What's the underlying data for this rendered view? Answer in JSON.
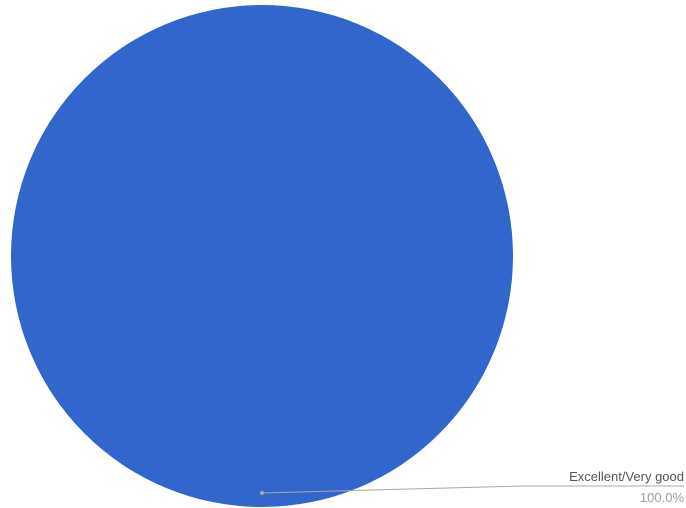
{
  "chart_data": {
    "type": "pie",
    "slices": [
      {
        "label": "Excellent/Very good",
        "value": 100.0,
        "percent_label": "100.0%",
        "color": "#3266cc"
      }
    ],
    "legend": "none",
    "label_style": "leader-line callout, bottom-right"
  }
}
